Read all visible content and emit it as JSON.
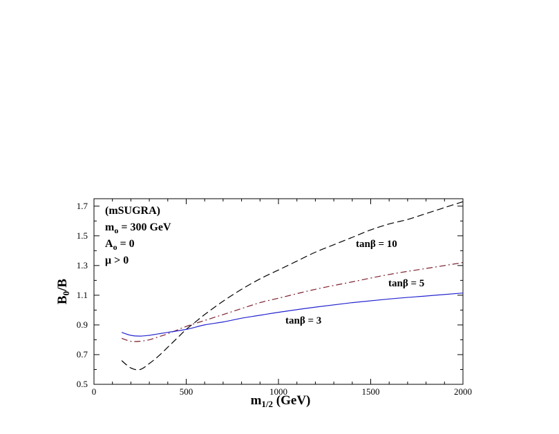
{
  "chart_data": {
    "type": "line",
    "title": "",
    "xlabel": {
      "base": "m",
      "sub": "1/2",
      "rest": " (GeV)"
    },
    "ylabel": {
      "base": "B",
      "sub": "0",
      "rest": "/B"
    },
    "xlim": [
      0,
      2000
    ],
    "ylim": [
      0.5,
      1.75
    ],
    "xticks": [
      0,
      500,
      1000,
      1500,
      2000
    ],
    "xtick_labels": [
      "0",
      "500",
      "1000",
      "1500",
      "2000"
    ],
    "yticks": [
      0.5,
      0.7,
      0.9,
      1.1,
      1.3,
      1.5,
      1.7
    ],
    "ytick_labels": [
      "0.5",
      "0.7",
      "0.9",
      "1.1",
      "1.3",
      "1.5",
      "1.7"
    ],
    "grid": false,
    "legend": "none",
    "annotations": [
      {
        "base": "(mSUGRA)"
      },
      {
        "base": "m",
        "sub": "o",
        "rest": " = 300 GeV"
      },
      {
        "base": "A",
        "sub": "o",
        "rest": " = 0"
      },
      {
        "base": "μ > 0"
      }
    ],
    "series": [
      {
        "name": "tanβ = 10",
        "color": "#000000",
        "dash": "dashed",
        "x": [
          150,
          200,
          250,
          300,
          350,
          400,
          450,
          500,
          550,
          600,
          700,
          800,
          900,
          1000,
          1100,
          1200,
          1300,
          1400,
          1500,
          1600,
          1700,
          1800,
          1900,
          2000
        ],
        "y": [
          0.66,
          0.61,
          0.6,
          0.64,
          0.69,
          0.75,
          0.81,
          0.87,
          0.92,
          0.97,
          1.06,
          1.14,
          1.21,
          1.27,
          1.33,
          1.39,
          1.44,
          1.49,
          1.54,
          1.58,
          1.61,
          1.65,
          1.69,
          1.73
        ]
      },
      {
        "name": "tanβ = 5",
        "color": "#7a1e2c",
        "dash": "dashdot",
        "x": [
          150,
          200,
          250,
          300,
          350,
          400,
          500,
          600,
          700,
          800,
          900,
          1000,
          1200,
          1400,
          1600,
          1800,
          2000
        ],
        "y": [
          0.81,
          0.79,
          0.79,
          0.8,
          0.82,
          0.84,
          0.89,
          0.93,
          0.97,
          1.01,
          1.05,
          1.08,
          1.14,
          1.19,
          1.24,
          1.28,
          1.32
        ]
      },
      {
        "name": "tanβ = 3",
        "color": "#2222d0",
        "dash": "solid",
        "x": [
          150,
          200,
          250,
          300,
          350,
          400,
          500,
          600,
          700,
          800,
          900,
          1000,
          1200,
          1400,
          1600,
          1800,
          2000
        ],
        "y": [
          0.85,
          0.83,
          0.825,
          0.83,
          0.84,
          0.85,
          0.87,
          0.9,
          0.92,
          0.945,
          0.965,
          0.985,
          1.02,
          1.05,
          1.075,
          1.095,
          1.115
        ]
      }
    ]
  }
}
